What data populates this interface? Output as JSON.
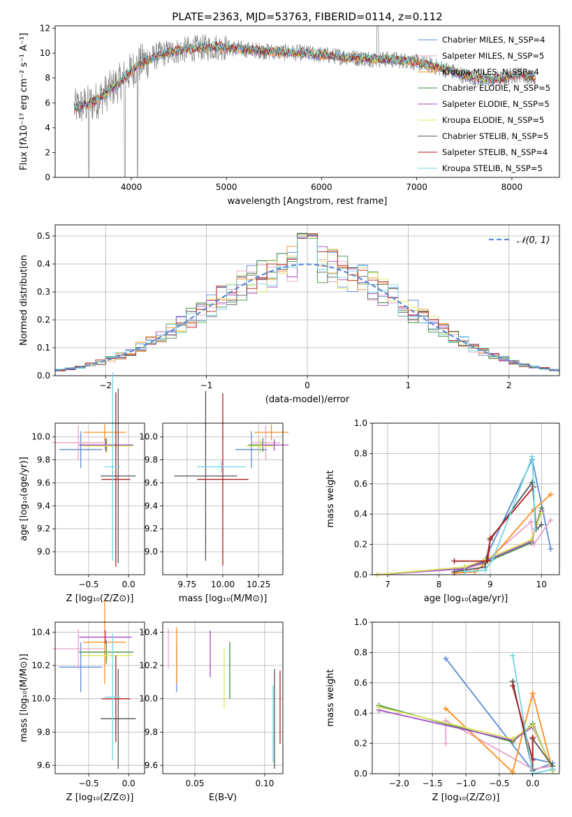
{
  "title": "PLATE=2363, MJD=53763, FIBERID=0114, z=0.112",
  "colors": {
    "Chabrier MILES": "#5a8ad6",
    "Salpeter MILES": "#e8a0c8",
    "Kroupa MILES": "#ff8c1a",
    "Chabrier ELODIE": "#3e8a3e",
    "Salpeter ELODIE": "#a34fc2",
    "Kroupa ELODIE": "#dde45a",
    "Chabrier STELIB": "#555555",
    "Salpeter STELIB": "#b01c1c",
    "Kroupa STELIB": "#72d6e0",
    "data": "#808080",
    "gauss": "#5a8ad6"
  },
  "chart_data": [
    {
      "id": "spectrum",
      "type": "line",
      "xlabel": "wavelength [Angstrom, rest frame]",
      "ylabel": "Flux [fλ10⁻¹⁷ erg cm⁻² s⁻¹ A⁻¹]",
      "xlim": [
        3200,
        8500
      ],
      "ylim": [
        0,
        12.2
      ],
      "xticks": [
        4000,
        5000,
        6000,
        7000,
        8000
      ],
      "yticks": [
        0,
        2,
        4,
        6,
        8,
        10,
        12
      ],
      "grid": false,
      "legend_position": "top-right",
      "legend": [
        "Chabrier MILES, N_SSP=4",
        "Salpeter MILES, N_SSP=5",
        "Kroupa MILES, N_SSP=4",
        "Chabrier ELODIE, N_SSP=5",
        "Salpeter ELODIE, N_SSP=5",
        "Kroupa ELODIE, N_SSP=5",
        "Chabrier STELIB, N_SSP=5",
        "Salpeter STELIB, N_SSP=4",
        "Kroupa STELIB, N_SSP=5"
      ],
      "continuum": [
        [
          3400,
          5.6
        ],
        [
          3600,
          6.0
        ],
        [
          3700,
          6.6
        ],
        [
          3800,
          7.2
        ],
        [
          3900,
          7.8
        ],
        [
          4000,
          8.6
        ],
        [
          4100,
          9.2
        ],
        [
          4300,
          9.9
        ],
        [
          4500,
          10.2
        ],
        [
          4700,
          10.4
        ],
        [
          4900,
          10.5
        ],
        [
          5200,
          10.3
        ],
        [
          5500,
          10.1
        ],
        [
          5800,
          10.0
        ],
        [
          6100,
          9.8
        ],
        [
          6400,
          9.6
        ],
        [
          6700,
          9.5
        ],
        [
          6900,
          9.4
        ],
        [
          7100,
          9.1
        ],
        [
          7300,
          8.7
        ],
        [
          7500,
          8.2
        ],
        [
          7700,
          7.9
        ],
        [
          7900,
          7.9
        ],
        [
          8000,
          8.2
        ],
        [
          8100,
          8.3
        ],
        [
          8250,
          7.9
        ]
      ]
    },
    {
      "id": "residuals",
      "type": "step",
      "xlabel": "(data-model)/error",
      "ylabel": "Normed distribution",
      "xlim": [
        -2.5,
        2.5
      ],
      "ylim": [
        0,
        0.54
      ],
      "xticks": [
        -2,
        -1,
        0,
        1,
        2
      ],
      "yticks": [
        0.0,
        0.1,
        0.2,
        0.3,
        0.4,
        0.5
      ],
      "grid": true,
      "legend_position": "top-right",
      "legend": [
        "𝒩(0, 1)"
      ]
    },
    {
      "id": "age-vs-Z",
      "type": "errorbar",
      "xlabel": "Z [log₁₀(Z/Z⊙)]",
      "ylabel": "age  [log₁₀(age/yr)]",
      "xlim": [
        -0.92,
        0.2
      ],
      "ylim": [
        8.8,
        10.12
      ],
      "xticks": [
        -0.5,
        0.0
      ],
      "yticks": [
        9.0,
        9.2,
        9.4,
        9.6,
        9.8,
        10.0
      ],
      "grid": true,
      "points": [
        {
          "series": "Chabrier MILES",
          "x": -0.6,
          "xerr": 0.27,
          "y": 9.89,
          "yerr": 0.16
        },
        {
          "series": "Salpeter MILES",
          "x": -0.63,
          "xerr": 0.33,
          "y": 9.95,
          "yerr": 0.15
        },
        {
          "series": "Kroupa MILES",
          "x": -0.3,
          "xerr": 0.27,
          "y": 10.04,
          "yerr": 0.07
        },
        {
          "series": "Chabrier ELODIE",
          "x": -0.28,
          "xerr": 0.34,
          "y": 9.93,
          "yerr": 0.06
        },
        {
          "series": "Salpeter ELODIE",
          "x": -0.29,
          "xerr": 0.33,
          "y": 9.93,
          "yerr": 0.05
        },
        {
          "series": "Kroupa ELODIE",
          "x": -0.27,
          "xerr": 0.32,
          "y": 9.92,
          "yerr": 0.06
        },
        {
          "series": "Chabrier STELIB",
          "x": -0.13,
          "xerr": 0.22,
          "y": 9.66,
          "yerr": 0.76
        },
        {
          "series": "Salpeter STELIB",
          "x": -0.16,
          "xerr": 0.18,
          "y": 9.63,
          "yerr": 0.76
        },
        {
          "series": "Kroupa STELIB",
          "x": -0.2,
          "xerr": 0.1,
          "y": 9.74,
          "yerr": 0.82
        }
      ]
    },
    {
      "id": "age-vs-mass",
      "type": "errorbar",
      "xlabel": "mass [log₁₀(M/M⊙)]",
      "ylabel": "",
      "xlim": [
        9.58,
        10.42
      ],
      "ylim": [
        8.8,
        10.12
      ],
      "xticks": [
        9.75,
        10.0,
        10.25
      ],
      "xtick_labels": [
        "9.75",
        "10.00",
        "10.25"
      ],
      "yticks": [
        9.0,
        9.2,
        9.4,
        9.6,
        9.8,
        10.0
      ],
      "grid": true,
      "points": [
        {
          "series": "Chabrier MILES",
          "x": 10.2,
          "xerr": 0.11,
          "y": 9.89,
          "yerr": 0.16
        },
        {
          "series": "Salpeter MILES",
          "x": 10.3,
          "xerr": 0.1,
          "y": 9.95,
          "yerr": 0.15
        },
        {
          "series": "Kroupa MILES",
          "x": 10.34,
          "xerr": 0.12,
          "y": 10.04,
          "yerr": 0.07
        },
        {
          "series": "Chabrier ELODIE",
          "x": 10.28,
          "xerr": 0.1,
          "y": 9.93,
          "yerr": 0.06
        },
        {
          "series": "Salpeter ELODIE",
          "x": 10.36,
          "xerr": 0.1,
          "y": 9.93,
          "yerr": 0.05
        },
        {
          "series": "Kroupa ELODIE",
          "x": 10.26,
          "xerr": 0.1,
          "y": 9.92,
          "yerr": 0.06
        },
        {
          "series": "Chabrier STELIB",
          "x": 9.88,
          "xerr": 0.22,
          "y": 9.66,
          "yerr": 0.74
        },
        {
          "series": "Salpeter STELIB",
          "x": 10.0,
          "xerr": 0.18,
          "y": 9.63,
          "yerr": 0.75
        },
        {
          "series": "Kroupa STELIB",
          "x": 9.99,
          "xerr": 0.17,
          "y": 9.74,
          "yerr": 0.05
        }
      ]
    },
    {
      "id": "weight-vs-age",
      "type": "line",
      "xlabel": "age  [log₁₀(age/yr)]",
      "ylabel": "mass weight",
      "xlim": [
        6.7,
        10.35
      ],
      "ylim": [
        0,
        1.0
      ],
      "xticks": [
        7,
        8,
        9,
        10
      ],
      "yticks": [
        0.0,
        0.2,
        0.4,
        0.6,
        0.8,
        1.0
      ],
      "grid": true,
      "series": [
        {
          "name": "Chabrier MILES",
          "points": [
            [
              8.3,
              0.02
            ],
            [
              8.9,
              0.1
            ],
            [
              9.82,
              0.76
            ],
            [
              10.18,
              0.17
            ]
          ]
        },
        {
          "name": "Salpeter MILES",
          "points": [
            [
              8.3,
              0.02
            ],
            [
              8.85,
              0.07
            ],
            [
              9.8,
              0.35
            ],
            [
              9.85,
              0.2
            ],
            [
              10.18,
              0.36
            ]
          ]
        },
        {
          "name": "Kroupa MILES",
          "points": [
            [
              8.3,
              0.01
            ],
            [
              8.7,
              0.02
            ],
            [
              9.0,
              0.1
            ],
            [
              9.85,
              0.43
            ],
            [
              10.18,
              0.53
            ]
          ]
        },
        {
          "name": "Chabrier ELODIE",
          "points": [
            [
              6.8,
              0.0
            ],
            [
              8.5,
              0.05
            ],
            [
              8.9,
              0.08
            ],
            [
              9.8,
              0.21
            ],
            [
              10.0,
              0.44
            ]
          ]
        },
        {
          "name": "Salpeter ELODIE",
          "points": [
            [
              6.8,
              0.0
            ],
            [
              8.5,
              0.04
            ],
            [
              8.9,
              0.09
            ],
            [
              9.8,
              0.22
            ],
            [
              10.0,
              0.42
            ]
          ]
        },
        {
          "name": "Kroupa ELODIE",
          "points": [
            [
              6.8,
              0.0
            ],
            [
              8.5,
              0.05
            ],
            [
              8.9,
              0.1
            ],
            [
              9.8,
              0.23
            ],
            [
              10.0,
              0.41
            ]
          ]
        },
        {
          "name": "Chabrier STELIB",
          "points": [
            [
              8.3,
              0.02
            ],
            [
              8.9,
              0.05
            ],
            [
              9.0,
              0.23
            ],
            [
              9.82,
              0.61
            ],
            [
              9.9,
              0.3
            ],
            [
              10.0,
              0.33
            ]
          ]
        },
        {
          "name": "Salpeter STELIB",
          "points": [
            [
              8.3,
              0.09
            ],
            [
              8.95,
              0.09
            ],
            [
              9.0,
              0.24
            ],
            [
              9.85,
              0.58
            ]
          ]
        },
        {
          "name": "Kroupa STELIB",
          "points": [
            [
              8.5,
              0.02
            ],
            [
              8.9,
              0.03
            ],
            [
              9.05,
              0.1
            ],
            [
              9.82,
              0.78
            ],
            [
              9.88,
              0.3
            ]
          ]
        }
      ]
    },
    {
      "id": "mass-vs-Z",
      "type": "errorbar",
      "xlabel": "Z [log₁₀(Z/Z⊙)]",
      "ylabel": "mass [log₁₀(M/M⊙)]",
      "xlim": [
        -0.92,
        0.2
      ],
      "ylim": [
        9.55,
        10.46
      ],
      "xticks": [
        -0.5,
        0.0
      ],
      "yticks": [
        9.6,
        9.8,
        10.0,
        10.2,
        10.4
      ],
      "grid": true,
      "points": [
        {
          "series": "Chabrier MILES",
          "x": -0.6,
          "xerr": 0.27,
          "y": 10.19,
          "yerr": 0.15
        },
        {
          "series": "Salpeter MILES",
          "x": -0.63,
          "xerr": 0.33,
          "y": 10.3,
          "yerr": 0.12
        },
        {
          "series": "Kroupa MILES",
          "x": -0.3,
          "xerr": 0.27,
          "y": 10.34,
          "yerr": 0.25
        },
        {
          "series": "Chabrier ELODIE",
          "x": -0.28,
          "xerr": 0.34,
          "y": 10.28,
          "yerr": 0.07
        },
        {
          "series": "Salpeter ELODIE",
          "x": -0.29,
          "xerr": 0.33,
          "y": 10.37,
          "yerr": 0.04
        },
        {
          "series": "Kroupa ELODIE",
          "x": -0.27,
          "xerr": 0.32,
          "y": 10.26,
          "yerr": 0.03
        },
        {
          "series": "Chabrier STELIB",
          "x": -0.13,
          "xerr": 0.22,
          "y": 9.88,
          "yerr": 0.3
        },
        {
          "series": "Salpeter STELIB",
          "x": -0.16,
          "xerr": 0.18,
          "y": 10.0,
          "yerr": 0.26
        },
        {
          "series": "Kroupa STELIB",
          "x": -0.2,
          "xerr": 0.1,
          "y": 10.01,
          "yerr": 0.38
        }
      ]
    },
    {
      "id": "mass-vs-EBV",
      "type": "errorbar",
      "xlabel": "E(B-V)",
      "ylabel": "",
      "xlim": [
        0.027,
        0.113
      ],
      "ylim": [
        9.55,
        10.46
      ],
      "xticks": [
        0.05,
        0.1
      ],
      "xtick_labels": [
        "0.05",
        "0.10"
      ],
      "yticks": [
        9.6,
        9.8,
        10.0,
        10.2,
        10.4
      ],
      "grid": true,
      "points": [
        {
          "series": "Chabrier MILES",
          "x": 0.037,
          "y": 10.19,
          "yerr": 0.15
        },
        {
          "series": "Salpeter MILES",
          "x": 0.031,
          "y": 10.3,
          "yerr": 0.12
        },
        {
          "series": "Kroupa MILES",
          "x": 0.037,
          "y": 10.26,
          "yerr": 0.17
        },
        {
          "series": "Chabrier ELODIE",
          "x": 0.075,
          "y": 10.17,
          "yerr": 0.17
        },
        {
          "series": "Salpeter ELODIE",
          "x": 0.061,
          "y": 10.27,
          "yerr": 0.14
        },
        {
          "series": "Kroupa ELODIE",
          "x": 0.071,
          "y": 10.12,
          "yerr": 0.18
        },
        {
          "series": "Chabrier STELIB",
          "x": 0.107,
          "y": 9.88,
          "yerr": 0.3
        },
        {
          "series": "Salpeter STELIB",
          "x": 0.111,
          "y": 9.95,
          "yerr": 0.22
        },
        {
          "series": "Kroupa STELIB",
          "x": 0.106,
          "y": 9.85,
          "yerr": 0.23
        }
      ]
    },
    {
      "id": "weight-vs-Z",
      "type": "line",
      "xlabel": "Z [log₁₀(Z/Z⊙)]",
      "ylabel": "mass weight",
      "xlim": [
        -2.4,
        0.4
      ],
      "ylim": [
        0,
        1.0
      ],
      "xticks": [
        -2.0,
        -1.5,
        -1.0,
        -0.5,
        0.0
      ],
      "yticks": [
        0.0,
        0.2,
        0.4,
        0.6,
        0.8,
        1.0
      ],
      "grid": true,
      "series": [
        {
          "name": "Chabrier MILES",
          "points": [
            [
              -1.3,
              0.76
            ],
            [
              0.0,
              0.02
            ],
            [
              0.3,
              0.07
            ],
            [
              0.0,
              0.1
            ]
          ]
        },
        {
          "name": "Salpeter MILES",
          "points": [
            [
              -1.3,
              0.2
            ],
            [
              -1.3,
              0.35
            ],
            [
              0.0,
              0.03
            ],
            [
              0.3,
              0.05
            ]
          ]
        },
        {
          "name": "Kroupa MILES",
          "points": [
            [
              -1.3,
              0.43
            ],
            [
              -0.3,
              0.01
            ],
            [
              0.0,
              0.53
            ],
            [
              0.3,
              0.02
            ]
          ]
        },
        {
          "name": "Chabrier ELODIE",
          "points": [
            [
              -2.3,
              0.45
            ],
            [
              -0.3,
              0.21
            ],
            [
              0.0,
              0.33
            ],
            [
              0.3,
              0.02
            ]
          ]
        },
        {
          "name": "Salpeter ELODIE",
          "points": [
            [
              -2.3,
              0.42
            ],
            [
              -0.3,
              0.22
            ],
            [
              0.0,
              0.31
            ],
            [
              0.3,
              0.03
            ]
          ]
        },
        {
          "name": "Kroupa ELODIE",
          "points": [
            [
              -2.3,
              0.44
            ],
            [
              -0.3,
              0.23
            ],
            [
              0.0,
              0.32
            ],
            [
              0.3,
              0.02
            ]
          ]
        },
        {
          "name": "Chabrier STELIB",
          "points": [
            [
              -0.3,
              0.61
            ],
            [
              0.0,
              0.02
            ],
            [
              0.0,
              0.23
            ],
            [
              0.3,
              0.05
            ]
          ]
        },
        {
          "name": "Salpeter STELIB",
          "points": [
            [
              -0.3,
              0.58
            ],
            [
              0.0,
              0.09
            ],
            [
              0.0,
              0.24
            ]
          ]
        },
        {
          "name": "Kroupa STELIB",
          "points": [
            [
              -0.3,
              0.78
            ],
            [
              0.0,
              0.0
            ],
            [
              0.3,
              0.03
            ]
          ]
        }
      ]
    }
  ]
}
